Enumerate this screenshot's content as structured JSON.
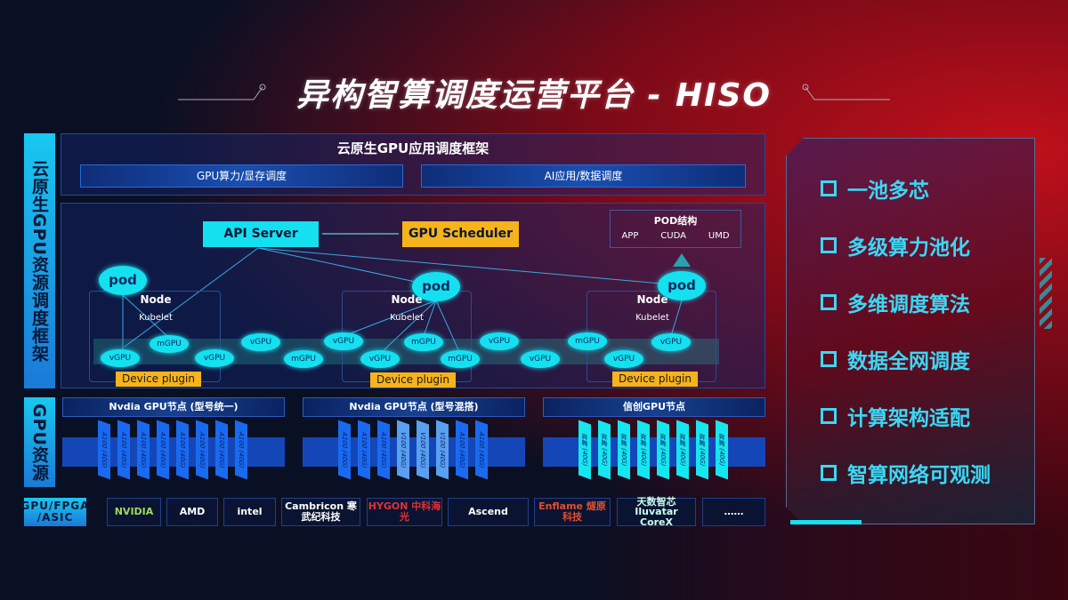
{
  "title": "异构智算调度运营平台 - HISO",
  "left_labels": {
    "framework": "云原生GPU资源调度框架",
    "resources": "GPU资源"
  },
  "framework": {
    "heading": "云原生GPU应用调度框架",
    "sub_boxes": [
      "GPU算力/显存调度",
      "AI应用/数据调度"
    ],
    "api_server": "API Server",
    "gpu_scheduler": "GPU Scheduler",
    "pod_structure": {
      "title": "POD结构",
      "items": [
        "APP",
        "CUDA",
        "UMD"
      ]
    },
    "pod_label": "pod",
    "node_label": "Node",
    "kubelet_label": "Kubelet",
    "device_plugin": "Device plugin",
    "gpu_ellipses": [
      "vGPU",
      "mGPU",
      "vGPU",
      "vGPU",
      "mGPU",
      "vGPU",
      "vGPU",
      "mGPU",
      "mGPU",
      "vGPU",
      "vGPU",
      "mGPU",
      "vGPU",
      "vGPU"
    ]
  },
  "gpu_nodes": [
    {
      "title": "Nvdia GPU节点 (型号统一)",
      "cards": [
        "A100 (40G)",
        "A100 (40G)",
        "A100 (40G)",
        "A100 (40G)",
        "A100 (40G)",
        "A100 (40G)",
        "A100 (40G)",
        "A100 (40G)"
      ]
    },
    {
      "title": "Nvdia GPU节点 (型号混搭)",
      "cards": [
        "A100 (40G)",
        "A100 (40G)",
        "A100 (40G)",
        "V100 (40G)",
        "V100 (40G)",
        "V100 (40G)",
        "A100 (40G)",
        "A100 (40G)"
      ]
    },
    {
      "title": "信创GPU节点",
      "cards": [
        "昇腾 (40G)",
        "昇腾 (40G)",
        "昇腾 (40G)",
        "昇腾 (40G)",
        "昇腾 (40G)",
        "昇腾 (40G)",
        "昇腾 (40G)",
        "昇腾 (40G)"
      ]
    }
  ],
  "vendor_row": {
    "label": "GPU/FPGA /ASIC",
    "vendors": [
      "NVIDIA",
      "AMD",
      "intel",
      "Cambricon 寒武纪科技",
      "HYGON 中科海光",
      "Ascend",
      "Enflame 燧原科技",
      "天数智芯 Iluvatar CoreX",
      "……"
    ]
  },
  "features": [
    "一池多芯",
    "多级算力池化",
    "多维调度算法",
    "数据全网调度",
    "计算架构适配",
    "智算网络可观测"
  ],
  "colors": {
    "cyan": "#14e0f0",
    "orange": "#f6b31b",
    "feature_text": "#3ad8f5"
  }
}
